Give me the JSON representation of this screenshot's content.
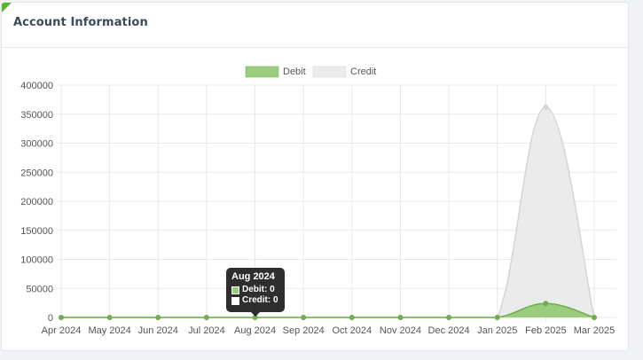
{
  "card": {
    "title": "Account Information"
  },
  "colors": {
    "debit_fill": "#9ccc7e",
    "debit_line": "#6ab04c",
    "credit_fill": "#ebebeb",
    "credit_line": "#d5d5d5",
    "accent": "#5ab52f"
  },
  "tooltip": {
    "title": "Aug 2024",
    "debit_label": "Debit: 0",
    "credit_label": "Credit: 0"
  },
  "chart_data": {
    "type": "area",
    "categories": [
      "Apr 2024",
      "May 2024",
      "Jun 2024",
      "Jul 2024",
      "Aug 2024",
      "Sep 2024",
      "Oct 2024",
      "Nov 2024",
      "Dec 2024",
      "Jan 2025",
      "Feb 2025",
      "Mar 2025"
    ],
    "series": [
      {
        "name": "Debit",
        "values": [
          0,
          0,
          0,
          0,
          0,
          0,
          0,
          0,
          0,
          0,
          24000,
          0
        ]
      },
      {
        "name": "Credit",
        "values": [
          0,
          0,
          0,
          0,
          0,
          0,
          0,
          0,
          0,
          0,
          362000,
          0
        ]
      }
    ],
    "ylim": [
      0,
      400000
    ],
    "yticks": [
      0,
      50000,
      100000,
      150000,
      200000,
      250000,
      300000,
      350000,
      400000
    ],
    "legend": "top-center",
    "grid": true
  }
}
